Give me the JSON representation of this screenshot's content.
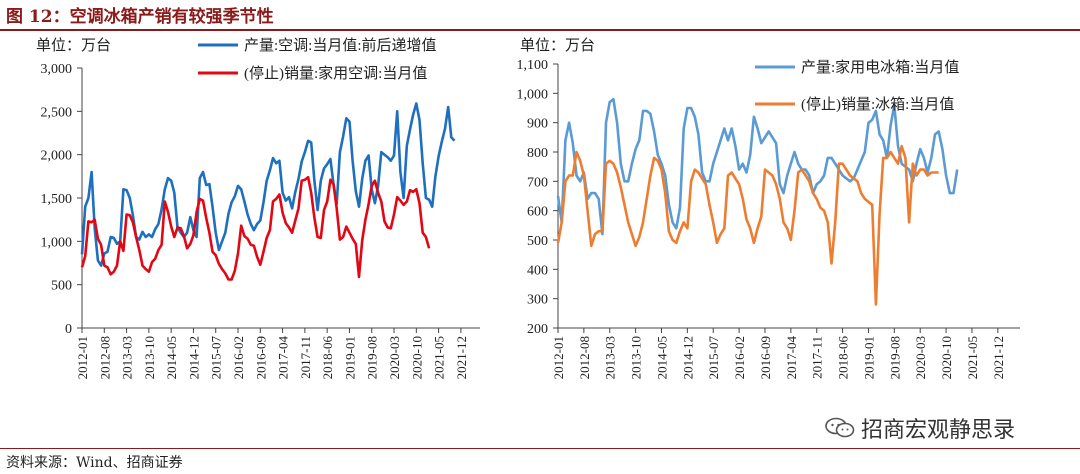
{
  "figure": {
    "title": "图 12：空调冰箱产销有较强季节性",
    "source": "资料来源：Wind、招商证券",
    "watermark": "招商宏观静思录",
    "watermark_icon": "wechat-icon"
  },
  "chart_data": [
    {
      "type": "line",
      "unit_label": "单位：万台",
      "ylim": [
        0,
        3000
      ],
      "yticks": [
        0,
        500,
        1000,
        1500,
        2000,
        2500,
        3000
      ],
      "ytick_labels": [
        "0",
        "500",
        "1,000",
        "1,500",
        "2,000",
        "2,500",
        "3,000"
      ],
      "xlim": [
        "2012-01",
        "2022-06"
      ],
      "xtick_labels": [
        "2012-01",
        "2012-08",
        "2013-03",
        "2013-10",
        "2014-05",
        "2014-12",
        "2015-07",
        "2016-02",
        "2016-09",
        "2017-04",
        "2017-11",
        "2018-06",
        "2019-01",
        "2019-08",
        "2020-03",
        "2020-10",
        "2021-05",
        "2021-12"
      ],
      "legend_position": "top",
      "series": [
        {
          "name": "产量:空调:当月值:前后递增值",
          "color": "#1f6fbf",
          "start": "2012-01",
          "values": [
            850,
            1400,
            1500,
            1800,
            1150,
            780,
            720,
            860,
            880,
            1050,
            1040,
            970,
            1000,
            1600,
            1590,
            1500,
            1300,
            1050,
            1020,
            1110,
            1050,
            1080,
            1050,
            1140,
            1200,
            1370,
            1600,
            1730,
            1700,
            1560,
            1160,
            1100,
            1050,
            1100,
            1280,
            1130,
            1050,
            1730,
            1800,
            1650,
            1660,
            1400,
            1100,
            900,
            1000,
            1100,
            1320,
            1450,
            1520,
            1640,
            1600,
            1460,
            1310,
            1200,
            1130,
            1200,
            1240,
            1450,
            1700,
            1820,
            1960,
            1900,
            1930,
            1560,
            1470,
            1510,
            1380,
            1570,
            1720,
            1920,
            2030,
            2160,
            2140,
            1700,
            1360,
            1700,
            1840,
            1890,
            1950,
            1660,
            1430,
            2030,
            2210,
            2420,
            2380,
            1930,
            1580,
            1400,
            1720,
            1930,
            1990,
            1600,
            1440,
            1640,
            2030,
            2000,
            1970,
            1930,
            1990,
            2500,
            1800,
            1500,
            2100,
            2290,
            2460,
            2590,
            2400,
            1900,
            1500,
            1480,
            1400,
            1750,
            1980,
            2150,
            2300,
            2550,
            2200,
            2160
          ]
        },
        {
          "name": "(停止)销量:家用空调:当月值",
          "color": "#e30613",
          "start": "2012-01",
          "values": [
            700,
            830,
            1230,
            1220,
            1250,
            1030,
            960,
            720,
            700,
            620,
            650,
            720,
            1000,
            890,
            1310,
            1300,
            1220,
            1050,
            900,
            720,
            680,
            650,
            760,
            800,
            900,
            960,
            1460,
            1340,
            1170,
            1050,
            1160,
            1150,
            1060,
            920,
            970,
            1070,
            1340,
            1490,
            1470,
            1270,
            1100,
            880,
            840,
            740,
            680,
            630,
            560,
            560,
            660,
            860,
            1180,
            1060,
            1030,
            960,
            950,
            820,
            730,
            880,
            1040,
            1130,
            1460,
            1490,
            1540,
            1330,
            1210,
            1160,
            1100,
            1240,
            1380,
            1700,
            1710,
            1740,
            1560,
            1270,
            1050,
            1040,
            1360,
            1460,
            1710,
            1660,
            1380,
            1020,
            1050,
            1170,
            1100,
            1030,
            970,
            590,
            1010,
            1250,
            1430,
            1640,
            1700,
            1560,
            1460,
            1230,
            1160,
            1150,
            1310,
            1510,
            1470,
            1420,
            1460,
            1590,
            1570,
            1600,
            1440,
            1100,
            1050,
            920
          ]
        }
      ]
    },
    {
      "type": "line",
      "unit_label": "单位：万台",
      "ylim": [
        200,
        1100
      ],
      "yticks": [
        200,
        300,
        400,
        500,
        600,
        700,
        800,
        900,
        1000,
        1100
      ],
      "ytick_labels": [
        "200",
        "300",
        "400",
        "500",
        "600",
        "700",
        "800",
        "900",
        "1,000",
        "1,100"
      ],
      "xlim": [
        "2012-01",
        "2022-06"
      ],
      "xtick_labels": [
        "2012-01",
        "2012-08",
        "2013-03",
        "2013-10",
        "2014-05",
        "2014-12",
        "2015-07",
        "2016-02",
        "2016-09",
        "2017-04",
        "2017-11",
        "2018-06",
        "2019-01",
        "2019-08",
        "2020-03",
        "2020-10",
        "2021-05",
        "2021-12"
      ],
      "legend_position": "top",
      "series": [
        {
          "name": "产量:家用电冰箱:当月值",
          "color": "#5b9bd5",
          "start": "2012-01",
          "values": [
            650,
            560,
            840,
            900,
            830,
            720,
            700,
            730,
            640,
            660,
            660,
            640,
            520,
            900,
            970,
            980,
            900,
            760,
            700,
            700,
            760,
            810,
            840,
            940,
            940,
            930,
            870,
            790,
            760,
            720,
            620,
            560,
            540,
            610,
            880,
            950,
            950,
            920,
            860,
            730,
            700,
            700,
            760,
            800,
            840,
            880,
            840,
            880,
            820,
            740,
            760,
            730,
            790,
            920,
            880,
            830,
            850,
            870,
            850,
            830,
            690,
            660,
            720,
            760,
            800,
            760,
            740,
            740,
            720,
            660,
            690,
            700,
            720,
            780,
            780,
            760,
            740,
            720,
            710,
            700,
            710,
            740,
            770,
            800,
            900,
            910,
            940,
            860,
            840,
            780,
            890,
            960,
            820,
            760,
            750,
            740,
            700,
            760,
            810,
            780,
            730,
            780,
            860,
            870,
            810,
            720,
            660,
            660,
            740
          ]
        },
        {
          "name": "(停止)销量:冰箱:当月值",
          "color": "#ed7d31",
          "start": "2012-01",
          "values": [
            490,
            560,
            700,
            720,
            720,
            800,
            770,
            720,
            600,
            480,
            520,
            530,
            530,
            760,
            770,
            760,
            730,
            680,
            620,
            560,
            520,
            480,
            510,
            560,
            640,
            720,
            780,
            770,
            740,
            660,
            530,
            500,
            490,
            530,
            560,
            540,
            700,
            740,
            730,
            710,
            690,
            620,
            560,
            490,
            520,
            540,
            720,
            730,
            710,
            690,
            640,
            570,
            540,
            490,
            540,
            580,
            740,
            730,
            720,
            690,
            640,
            560,
            540,
            500,
            600,
            730,
            740,
            720,
            700,
            660,
            640,
            610,
            600,
            560,
            420,
            560,
            760,
            760,
            740,
            720,
            710,
            700,
            660,
            640,
            630,
            620,
            280,
            590,
            780,
            780,
            800,
            780,
            760,
            820,
            780,
            560,
            760,
            720,
            740,
            740,
            720,
            730,
            730,
            730
          ]
        }
      ]
    }
  ]
}
